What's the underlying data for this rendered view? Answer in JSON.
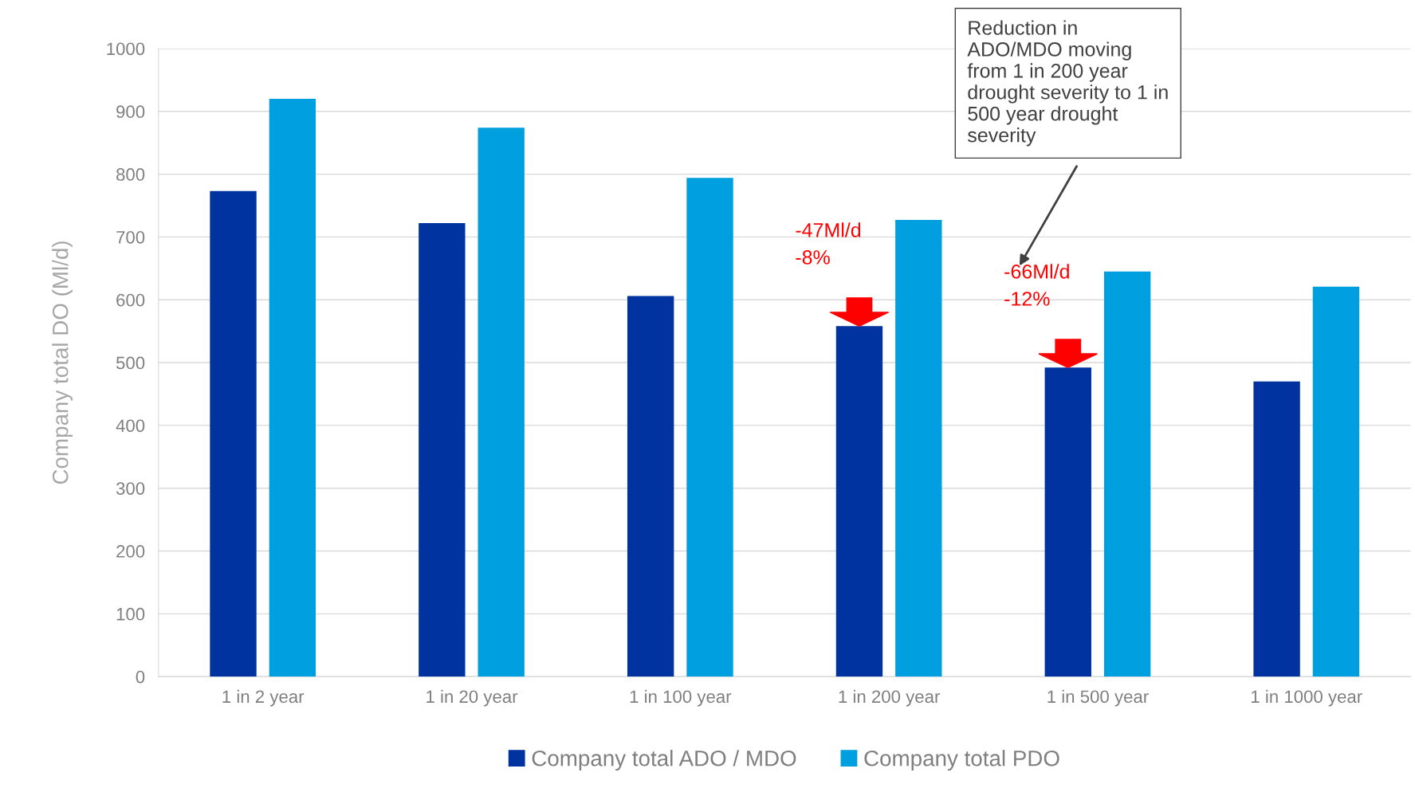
{
  "chart_data": {
    "type": "bar",
    "ylabel": "Company total DO (Ml/d)",
    "categories": [
      "1 in 2 year",
      "1 in 20 year",
      "1 in 100 year",
      "1 in 200 year",
      "1 in 500 year",
      "1 in 1000 year"
    ],
    "series": [
      {
        "name": "Company total ADO / MDO",
        "color": "#0033a0",
        "values": [
          773,
          722,
          606,
          558,
          492,
          470
        ]
      },
      {
        "name": "Company total PDO",
        "color": "#009fdf",
        "values": [
          920,
          874,
          794,
          727,
          645,
          621
        ]
      }
    ],
    "ylim": [
      0,
      1000
    ],
    "yticks": [
      0,
      100,
      200,
      300,
      400,
      500,
      600,
      700,
      800,
      900,
      1000
    ],
    "grid": "y",
    "legend": "bottom",
    "annotations": [
      "-47Ml/d\n-8%",
      "-66Ml/d\n-12%",
      "Reduction in\nADO/MDO moving\nfrom 1 in 200 year\ndrought severity to 1 in\n500 year drought\nseverity"
    ]
  }
}
